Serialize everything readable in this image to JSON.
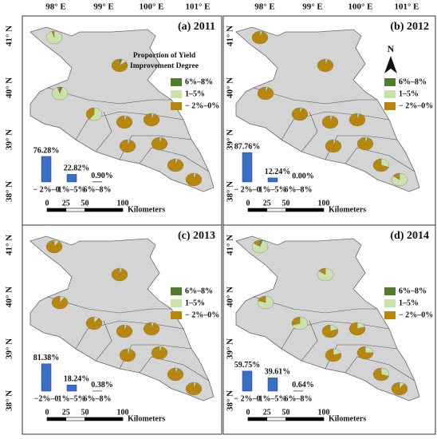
{
  "longitude_labels": [
    "98° E",
    "99° E",
    "100° E",
    "101° E"
  ],
  "latitude_labels": [
    "41° N",
    "40° N",
    "39° N",
    "38° N"
  ],
  "legend": {
    "entries": [
      {
        "label": "6%–8%",
        "color": "#4f7d2e"
      },
      {
        "label": "1–5%",
        "color": "#c9e2a9"
      },
      {
        "label": "− 2%–0%",
        "color": "#b8860b"
      }
    ]
  },
  "north": "N",
  "panels": [
    {
      "title": "(a) 2011",
      "legend_title": [
        "Proportion of Yield",
        "Improvement Degree"
      ],
      "bars": {
        "categories": [
          "− 2%–0",
          "1%–5%",
          "6%–8%"
        ],
        "values": [
          76.28,
          22.82,
          0.9
        ],
        "value_labels": [
          "76.28%",
          "22.82%",
          "0.90%"
        ],
        "color": "#3b6fc6"
      },
      "scale": {
        "ticks": [
          0,
          25,
          50,
          100
        ],
        "unit": "Kilometers"
      },
      "pies": [
        [
          0,
          95,
          5
        ],
        [
          5,
          10,
          85
        ],
        [
          5,
          90,
          5
        ],
        [
          0,
          60,
          40
        ],
        [
          0,
          5,
          95
        ],
        [
          0,
          5,
          95
        ],
        [
          0,
          5,
          95
        ],
        [
          0,
          5,
          95
        ],
        [
          0,
          5,
          95
        ],
        [
          0,
          5,
          95
        ]
      ]
    },
    {
      "title": "(b) 2012",
      "bars": {
        "categories": [
          "− 2%–0",
          "1%–5%",
          "6%–8%"
        ],
        "values": [
          87.76,
          12.24,
          0.0
        ],
        "value_labels": [
          "87.76%",
          "12.24%",
          "0.00%"
        ],
        "color": "#3b6fc6"
      },
      "scale": {
        "ticks": [
          0,
          25,
          50,
          100
        ],
        "unit": "Kilometers"
      },
      "pies": [
        [
          0,
          5,
          95
        ],
        [
          0,
          5,
          95
        ],
        [
          0,
          5,
          95
        ],
        [
          0,
          5,
          95
        ],
        [
          0,
          5,
          95
        ],
        [
          0,
          5,
          95
        ],
        [
          0,
          5,
          95
        ],
        [
          0,
          5,
          95
        ],
        [
          0,
          30,
          70
        ],
        [
          0,
          85,
          15
        ]
      ]
    },
    {
      "title": "(c) 2013",
      "bars": {
        "categories": [
          "−2%–0",
          "1%–5%",
          "6%–8%"
        ],
        "values": [
          81.38,
          18.24,
          0.38
        ],
        "value_labels": [
          "81.38%",
          "18.24%",
          "0.38%"
        ],
        "color": "#3b6fc6"
      },
      "scale": {
        "ticks": [
          0,
          25,
          50,
          100
        ],
        "unit": "Kilometers"
      },
      "pies": [
        [
          0,
          10,
          90
        ],
        [
          0,
          5,
          95
        ],
        [
          0,
          10,
          90
        ],
        [
          0,
          10,
          90
        ],
        [
          0,
          5,
          95
        ],
        [
          0,
          5,
          95
        ],
        [
          0,
          5,
          95
        ],
        [
          0,
          5,
          95
        ],
        [
          0,
          5,
          95
        ],
        [
          0,
          5,
          95
        ]
      ]
    },
    {
      "title": "(d) 2014",
      "bars": {
        "categories": [
          "− 2%–0",
          "1%–5%",
          "6%–8%"
        ],
        "values": [
          59.75,
          39.61,
          0.64
        ],
        "value_labels": [
          "59.75%",
          "39.61%",
          "0.64%"
        ],
        "color": "#3b6fc6"
      },
      "scale": {
        "ticks": [
          0,
          25,
          50,
          100
        ],
        "unit": "Kilometers"
      },
      "pies": [
        [
          5,
          80,
          15
        ],
        [
          0,
          85,
          15
        ],
        [
          0,
          80,
          20
        ],
        [
          0,
          70,
          30
        ],
        [
          0,
          20,
          80
        ],
        [
          0,
          20,
          80
        ],
        [
          0,
          20,
          80
        ],
        [
          0,
          25,
          75
        ],
        [
          0,
          30,
          70
        ],
        [
          0,
          10,
          90
        ]
      ]
    }
  ]
}
